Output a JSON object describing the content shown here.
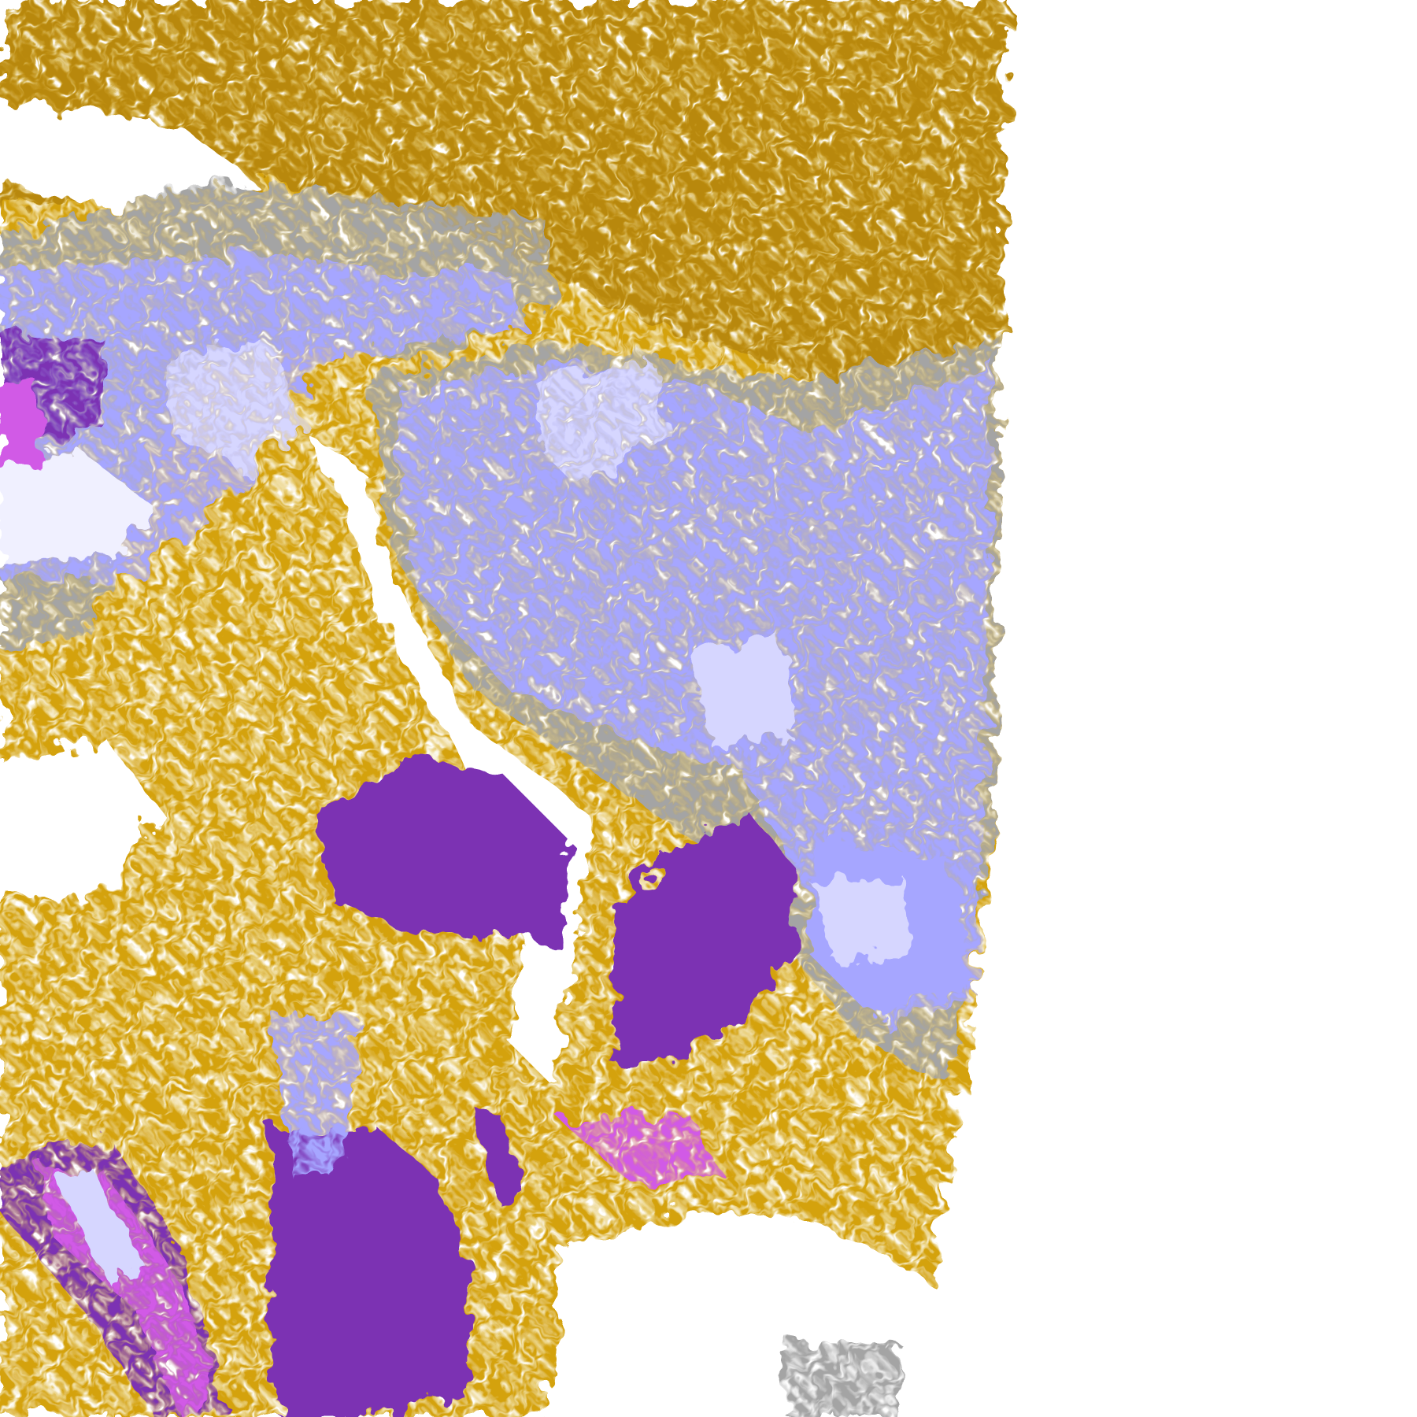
{
  "map": {
    "colors": {
      "background": "#ffffff",
      "gold": "#d4a20a",
      "gold_dark": "#b8880c",
      "purple": "#7b33b3",
      "magenta": "#d15ae6",
      "lavender": "#a6a6ff",
      "lavender_light": "#d6d6ff",
      "pale": "#f0f0ff",
      "gray": "#a4a4a4",
      "gray_dark": "#8a8a8a"
    }
  }
}
